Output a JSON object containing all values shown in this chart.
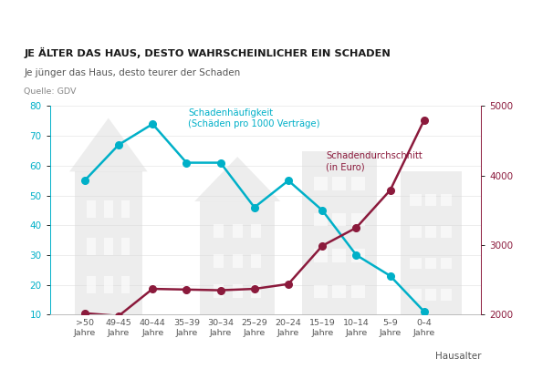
{
  "categories": [
    ">50\nJahre",
    "49–45\nJahre",
    "40–44\nJahre",
    "35–39\nJahre",
    "30–34\nJahre",
    "25–29\nJahre",
    "20–24\nJahre",
    "15–19\nJahre",
    "10–14\nJahre",
    "5–9\nJahre",
    "0–4\nJahre"
  ],
  "haeufigkeit": [
    55,
    67,
    74,
    61,
    61,
    46,
    55,
    45,
    30,
    23,
    11
  ],
  "durchschnitt_right": [
    2020,
    1980,
    2370,
    2360,
    2350,
    2370,
    2440,
    2990,
    3250,
    3790,
    4800
  ],
  "title": "JE ÄLTER DAS HAUS, DESTO WAHRSCHEINLICHER EIN SCHADEN",
  "subtitle": "Je jünger das Haus, desto teurer der Schaden",
  "source": "Quelle: GDV",
  "xlabel": "Hausalter",
  "color_haeufigkeit": "#00B0C8",
  "color_durchschnitt": "#8B1A3C",
  "ylim_left": [
    10,
    80
  ],
  "ylim_right": [
    2000,
    5000
  ],
  "yticks_left": [
    10,
    20,
    30,
    40,
    50,
    60,
    70,
    80
  ],
  "yticks_right": [
    2000,
    3000,
    4000,
    5000
  ],
  "annotation_haeufigkeit": "Schadenhäufigkeit\n(Schäden pro 1000 Verträge)",
  "annotation_durchschnitt": "Schadendurchschnitt\n(in Euro)",
  "bg_color": "#FFFFFF",
  "house_color": "#D8D8D8"
}
